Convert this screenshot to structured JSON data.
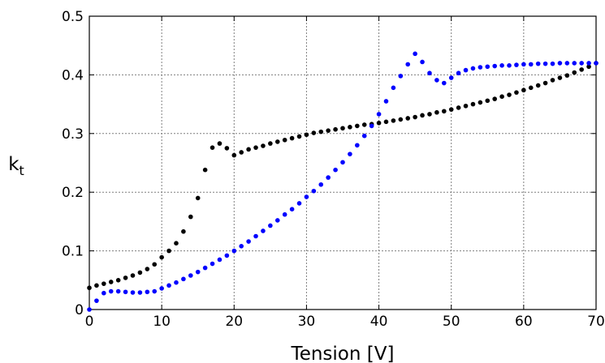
{
  "chart_data": {
    "type": "scatter",
    "title": "",
    "xlabel": "Tension [V]",
    "ylabel_main": "k",
    "ylabel_sub": "t",
    "xlim": [
      0,
      70
    ],
    "ylim": [
      0,
      0.5
    ],
    "xticks": [
      0,
      10,
      20,
      30,
      40,
      50,
      60,
      70
    ],
    "xtick_labels": [
      "0",
      "10",
      "20",
      "30",
      "40",
      "50",
      "60",
      "70"
    ],
    "yticks": [
      0,
      0.1,
      0.2,
      0.3,
      0.4,
      0.5
    ],
    "ytick_labels": [
      "0",
      "0.1",
      "0.2",
      "0.3",
      "0.4",
      "0.5"
    ],
    "grid": true,
    "legend": "none",
    "series": [
      {
        "color": "#000000",
        "x": [
          0,
          1,
          2,
          3,
          4,
          5,
          6,
          7,
          8,
          9,
          10,
          11,
          12,
          13,
          14,
          15,
          16,
          17,
          18,
          19,
          20,
          21,
          22,
          23,
          24,
          25,
          26,
          27,
          28,
          29,
          30,
          31,
          32,
          33,
          34,
          35,
          36,
          37,
          38,
          39,
          40,
          41,
          42,
          43,
          44,
          45,
          46,
          47,
          48,
          49,
          50,
          51,
          52,
          53,
          54,
          55,
          56,
          57,
          58,
          59,
          60,
          61,
          62,
          63,
          64,
          65,
          66,
          67,
          68,
          69,
          70
        ],
        "y": [
          0.037,
          0.041,
          0.044,
          0.047,
          0.05,
          0.054,
          0.058,
          0.063,
          0.069,
          0.077,
          0.089,
          0.1,
          0.113,
          0.133,
          0.158,
          0.19,
          0.238,
          0.276,
          0.283,
          0.275,
          0.263,
          0.268,
          0.273,
          0.276,
          0.279,
          0.283,
          0.286,
          0.289,
          0.292,
          0.295,
          0.298,
          0.301,
          0.303,
          0.305,
          0.307,
          0.309,
          0.311,
          0.313,
          0.315,
          0.316,
          0.318,
          0.32,
          0.322,
          0.324,
          0.326,
          0.328,
          0.331,
          0.333,
          0.336,
          0.338,
          0.341,
          0.344,
          0.347,
          0.35,
          0.353,
          0.356,
          0.359,
          0.363,
          0.366,
          0.37,
          0.374,
          0.378,
          0.382,
          0.386,
          0.391,
          0.395,
          0.399,
          0.404,
          0.409,
          0.414,
          0.42
        ]
      },
      {
        "color": "#0000ff",
        "x": [
          0,
          1,
          2,
          3,
          4,
          5,
          6,
          7,
          8,
          9,
          10,
          11,
          12,
          13,
          14,
          15,
          16,
          17,
          18,
          19,
          20,
          21,
          22,
          23,
          24,
          25,
          26,
          27,
          28,
          29,
          30,
          31,
          32,
          33,
          34,
          35,
          36,
          37,
          38,
          39,
          40,
          41,
          42,
          43,
          44,
          45,
          46,
          47,
          48,
          49,
          50,
          51,
          52,
          53,
          54,
          55,
          56,
          57,
          58,
          59,
          60,
          61,
          62,
          63,
          64,
          65,
          66,
          67,
          68,
          69,
          70
        ],
        "y": [
          0.0,
          0.015,
          0.028,
          0.031,
          0.031,
          0.03,
          0.029,
          0.029,
          0.03,
          0.031,
          0.036,
          0.041,
          0.046,
          0.052,
          0.058,
          0.064,
          0.071,
          0.078,
          0.085,
          0.092,
          0.1,
          0.108,
          0.116,
          0.125,
          0.134,
          0.143,
          0.152,
          0.162,
          0.171,
          0.181,
          0.192,
          0.202,
          0.213,
          0.225,
          0.238,
          0.251,
          0.265,
          0.28,
          0.296,
          0.313,
          0.333,
          0.355,
          0.378,
          0.398,
          0.418,
          0.436,
          0.422,
          0.403,
          0.391,
          0.386,
          0.395,
          0.403,
          0.408,
          0.411,
          0.413,
          0.414,
          0.415,
          0.416,
          0.416,
          0.417,
          0.418,
          0.418,
          0.419,
          0.419,
          0.419,
          0.42,
          0.42,
          0.42,
          0.42,
          0.42,
          0.42
        ]
      }
    ]
  }
}
